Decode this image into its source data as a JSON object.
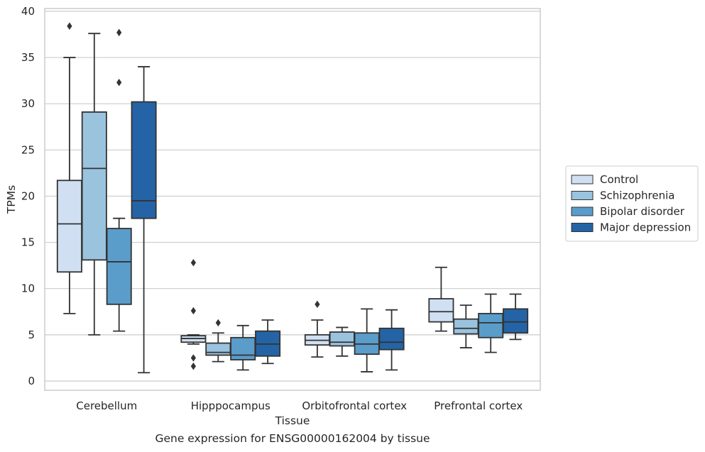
{
  "caption": "Gene expression for ENSG00000162004 by tissue",
  "chart_data": {
    "type": "boxplot",
    "xlabel": "Tissue",
    "ylabel": "TPMs",
    "ylim": [
      -1,
      40.3
    ],
    "yticks": [
      0,
      5,
      10,
      15,
      20,
      25,
      30,
      35,
      40
    ],
    "grid": "horizontal",
    "legend_position": "right",
    "categories": [
      "Cerebellum",
      "Hipppocampus",
      "Orbitofrontal cortex",
      "Prefrontal cortex"
    ],
    "series": [
      {
        "name": "Control",
        "color": "#d0e0f2",
        "boxes": [
          {
            "whisker_low": 7.3,
            "q1": 11.8,
            "median": 17.0,
            "q3": 21.7,
            "whisker_high": 35.0,
            "outliers": [
              38.4
            ]
          },
          {
            "whisker_low": 4.0,
            "q1": 4.2,
            "median": 4.6,
            "q3": 4.9,
            "whisker_high": 5.0,
            "outliers": [
              12.8,
              7.6,
              2.5,
              1.6
            ]
          },
          {
            "whisker_low": 2.6,
            "q1": 3.9,
            "median": 4.4,
            "q3": 5.0,
            "whisker_high": 6.6,
            "outliers": [
              8.3
            ]
          },
          {
            "whisker_low": 5.4,
            "q1": 6.4,
            "median": 7.5,
            "q3": 8.9,
            "whisker_high": 12.3,
            "outliers": []
          }
        ]
      },
      {
        "name": "Schizophrenia",
        "color": "#9ac3de",
        "boxes": [
          {
            "whisker_low": 5.0,
            "q1": 13.1,
            "median": 23.0,
            "q3": 29.1,
            "whisker_high": 37.6,
            "outliers": []
          },
          {
            "whisker_low": 2.1,
            "q1": 2.8,
            "median": 3.1,
            "q3": 4.1,
            "whisker_high": 5.2,
            "outliers": [
              6.3
            ]
          },
          {
            "whisker_low": 2.7,
            "q1": 3.8,
            "median": 4.2,
            "q3": 5.3,
            "whisker_high": 5.8,
            "outliers": []
          },
          {
            "whisker_low": 3.6,
            "q1": 5.1,
            "median": 5.7,
            "q3": 6.7,
            "whisker_high": 8.2,
            "outliers": []
          }
        ]
      },
      {
        "name": "Bipolar disorder",
        "color": "#5a9cca",
        "boxes": [
          {
            "whisker_low": 5.4,
            "q1": 8.3,
            "median": 12.9,
            "q3": 16.5,
            "whisker_high": 17.6,
            "outliers": [
              37.7,
              32.3
            ]
          },
          {
            "whisker_low": 1.2,
            "q1": 2.3,
            "median": 2.8,
            "q3": 4.7,
            "whisker_high": 6.0,
            "outliers": []
          },
          {
            "whisker_low": 1.0,
            "q1": 2.9,
            "median": 4.0,
            "q3": 5.2,
            "whisker_high": 7.8,
            "outliers": []
          },
          {
            "whisker_low": 3.1,
            "q1": 4.7,
            "median": 6.3,
            "q3": 7.3,
            "whisker_high": 9.4,
            "outliers": []
          }
        ]
      },
      {
        "name": "Major depression",
        "color": "#2464a6",
        "boxes": [
          {
            "whisker_low": 0.9,
            "q1": 17.6,
            "median": 19.5,
            "q3": 30.2,
            "whisker_high": 34.0,
            "outliers": []
          },
          {
            "whisker_low": 1.9,
            "q1": 2.7,
            "median": 4.0,
            "q3": 5.4,
            "whisker_high": 6.6,
            "outliers": []
          },
          {
            "whisker_low": 1.2,
            "q1": 3.4,
            "median": 4.2,
            "q3": 5.7,
            "whisker_high": 7.7,
            "outliers": []
          },
          {
            "whisker_low": 4.5,
            "q1": 5.2,
            "median": 6.4,
            "q3": 7.8,
            "whisker_high": 9.4,
            "outliers": []
          }
        ]
      }
    ]
  }
}
